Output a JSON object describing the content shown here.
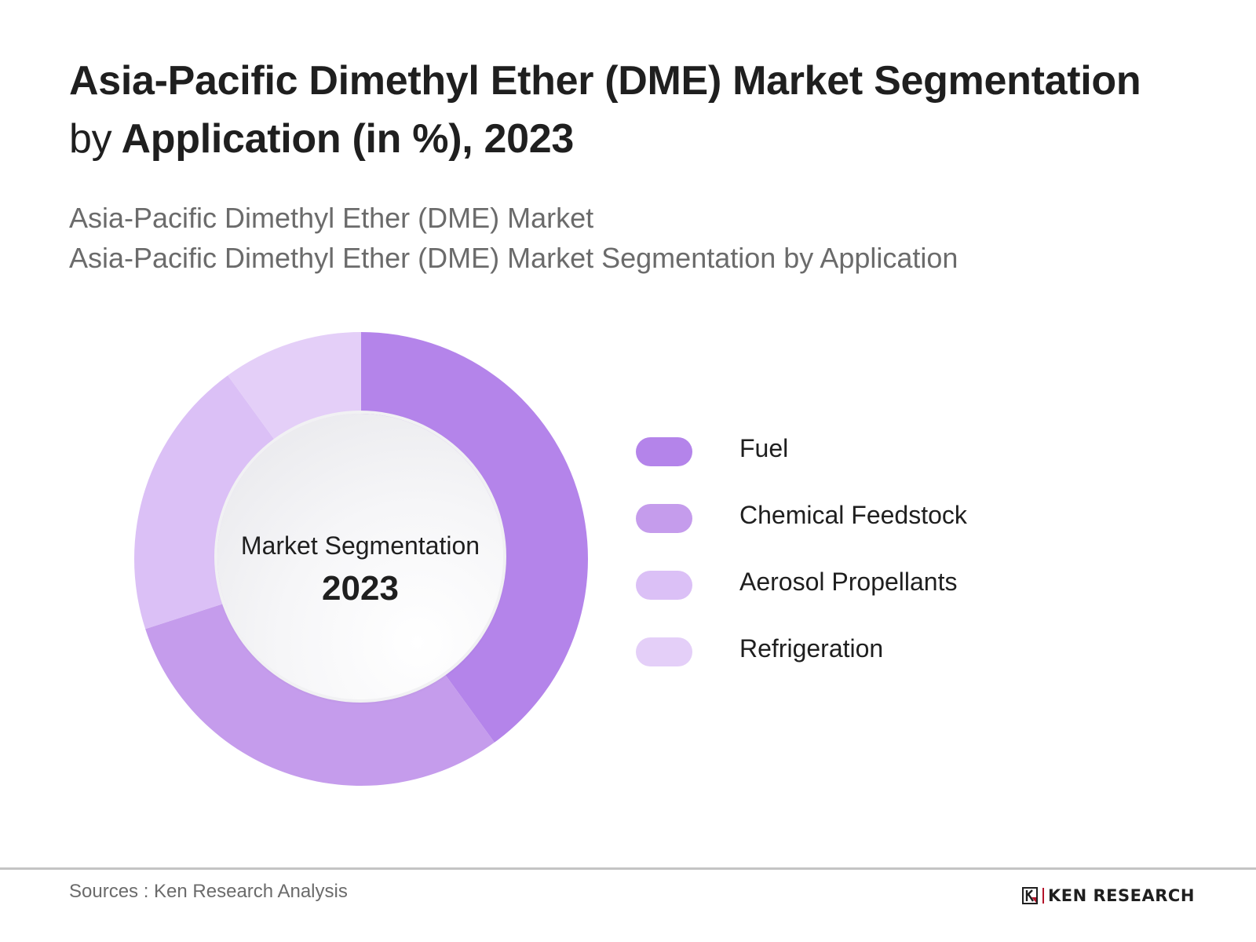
{
  "header": {
    "title_line1": "Asia-Pacific Dimethyl Ether (DME) Market Segmentation",
    "title_line2_prefix": "by",
    "title_line2_rest": " Application (in %), 2023",
    "subtitle_line1": "Asia-Pacific Dimethyl Ether (DME) Market",
    "subtitle_line2": "Asia-Pacific Dimethyl Ether (DME) Market Segmentation by Application"
  },
  "center": {
    "label": "Market Segmentation",
    "year": "2023"
  },
  "legend": [
    {
      "label": "Fuel",
      "color": "#b484ea"
    },
    {
      "label": "Chemical Feedstock",
      "color": "#c59cec"
    },
    {
      "label": "Aerosol Propellants",
      "color": "#dbc0f6"
    },
    {
      "label": "Refrigeration",
      "color": "#e4cff8"
    }
  ],
  "footer": {
    "sources": "Sources : Ken Research Analysis",
    "logo_text": "KEN RESEARCH"
  },
  "chart_data": {
    "type": "pie",
    "variant": "donut",
    "title": "Asia-Pacific Dimethyl Ether (DME) Market Segmentation by Application (in %), 2023",
    "subtitle": "Asia-Pacific Dimethyl Ether (DME) Market Segmentation by Application",
    "center_text": [
      "Market Segmentation",
      "2023"
    ],
    "categories": [
      "Fuel",
      "Chemical Feedstock",
      "Aerosol Propellants",
      "Refrigeration"
    ],
    "values": [
      40,
      30,
      20,
      10
    ],
    "unit": "%",
    "colors": [
      "#b484ea",
      "#c59cec",
      "#dbc0f6",
      "#e4cff8"
    ],
    "start_angle_deg": 0,
    "direction": "clockwise",
    "legend_position": "right",
    "data_labels": false
  }
}
